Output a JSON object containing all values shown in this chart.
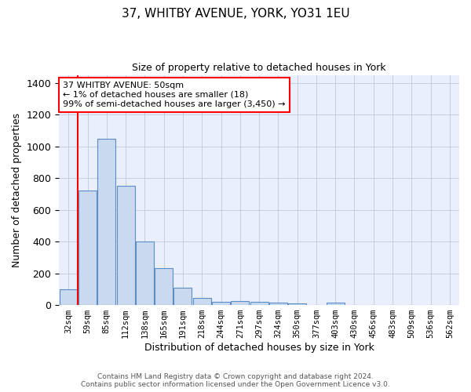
{
  "title": "37, WHITBY AVENUE, YORK, YO31 1EU",
  "subtitle": "Size of property relative to detached houses in York",
  "xlabel": "Distribution of detached houses by size in York",
  "ylabel": "Number of detached properties",
  "categories": [
    "32sqm",
    "59sqm",
    "85sqm",
    "112sqm",
    "138sqm",
    "165sqm",
    "191sqm",
    "218sqm",
    "244sqm",
    "271sqm",
    "297sqm",
    "324sqm",
    "350sqm",
    "377sqm",
    "403sqm",
    "430sqm",
    "456sqm",
    "483sqm",
    "509sqm",
    "536sqm",
    "562sqm"
  ],
  "values": [
    100,
    720,
    1050,
    750,
    400,
    235,
    110,
    45,
    20,
    25,
    20,
    15,
    10,
    0,
    15,
    0,
    0,
    0,
    0,
    0,
    0
  ],
  "bar_color": "#c9d9ef",
  "bar_edge_color": "#5b8ec4",
  "annotation_text": "37 WHITBY AVENUE: 50sqm\n← 1% of detached houses are smaller (18)\n99% of semi-detached houses are larger (3,450) →",
  "annotation_box_color": "white",
  "annotation_box_edge": "red",
  "vline_color": "red",
  "vline_x_index": 0.5,
  "ylim": [
    0,
    1450
  ],
  "yticks": [
    0,
    200,
    400,
    600,
    800,
    1000,
    1200,
    1400
  ],
  "bg_color": "#eaf0fb",
  "grid_color": "#c0c8dc",
  "footer_line1": "Contains HM Land Registry data © Crown copyright and database right 2024.",
  "footer_line2": "Contains public sector information licensed under the Open Government Licence v3.0."
}
